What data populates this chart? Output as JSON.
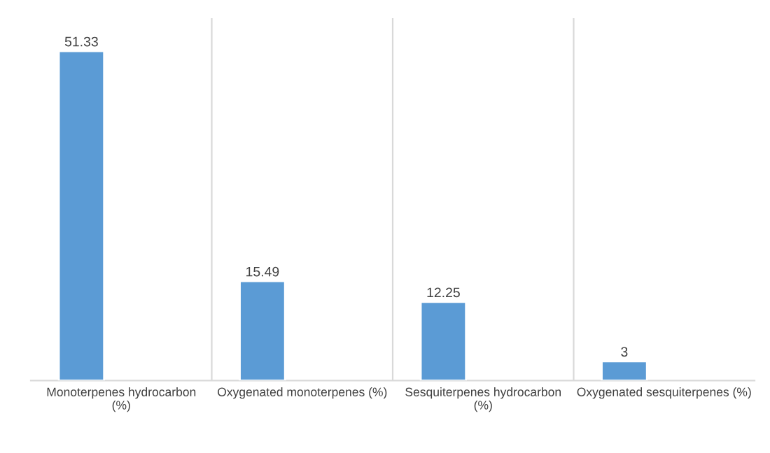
{
  "chart_data": {
    "type": "bar",
    "categories": [
      "Monoterpenes hydrocarbon\n(%)",
      "Oxygenated monoterpenes (%)",
      "Sesquiterpenes hydrocarbon\n(%)",
      "Oxygenated sesquiterpenes (%)"
    ],
    "values": [
      51.33,
      15.49,
      12.25,
      3
    ],
    "color": "#5b9bd5",
    "data_labels": true,
    "grid": "x",
    "tick_labels": "x"
  }
}
